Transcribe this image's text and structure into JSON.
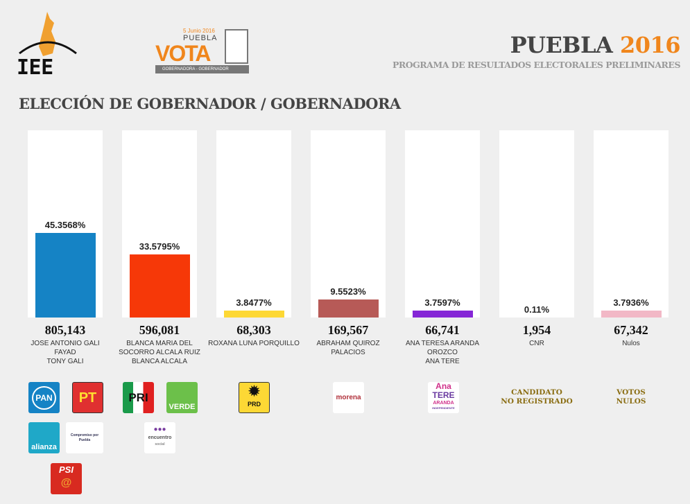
{
  "header": {
    "iee_logo": "IEE",
    "vota_logo": {
      "date": "5 Junio 2016",
      "city": "PUEBLA",
      "word": "VOTA",
      "caption": "GOBERNADORA - GOBERNADOR"
    },
    "title_main": "PUEBLA",
    "title_year": "2016",
    "subtitle": "PROGRAMA DE RESULTADOS ELECTORALES PRELIMINARES"
  },
  "section_title": "ELECCIÓN DE GOBERNADOR / GOBERNADORA",
  "colors": {
    "accent": "#f0861c",
    "pan": "#1583c5",
    "pri": "#f63808",
    "prd": "#fdd835",
    "morena": "#b75a57",
    "independent": "#8526d6",
    "cnr": "#dddddd",
    "nulos": "#f2b8c6"
  },
  "chart_data": {
    "type": "bar",
    "ylim": [
      0,
      100
    ],
    "grid": false,
    "categories": [
      "JOSE ANTONIO GALI FAYAD TONY GALI",
      "BLANCA MARIA DEL SOCORRO ALCALA RUIZ BLANCA ALCALA",
      "ROXANA LUNA PORQUILLO",
      "ABRAHAM QUIROZ PALACIOS",
      "ANA TERESA ARANDA OROZCO ANA TERE",
      "CNR",
      "Nulos"
    ],
    "values": [
      45.3568,
      33.5795,
      3.8477,
      9.5523,
      3.7597,
      0.11,
      3.7936
    ],
    "labels": [
      "45.3568%",
      "33.5795%",
      "3.8477%",
      "9.5523%",
      "3.7597%",
      "0.11%",
      "3.7936%"
    ],
    "votes": [
      "805,143",
      "596,081",
      "68,303",
      "169,567",
      "66,741",
      "1,954",
      "67,342"
    ],
    "candidate_lines": [
      [
        "JOSE ANTONIO GALI",
        "FAYAD",
        "TONY GALI"
      ],
      [
        "BLANCA MARIA DEL",
        "SOCORRO ALCALA RUIZ",
        "BLANCA ALCALA"
      ],
      [
        "ROXANA LUNA PORQUILLO"
      ],
      [
        "ABRAHAM QUIROZ",
        "PALACIOS"
      ],
      [
        "ANA TERESA ARANDA",
        "OROZCO",
        "ANA TERE"
      ],
      [
        "CNR"
      ],
      [
        "Nulos"
      ]
    ],
    "colors": [
      "#1583c5",
      "#f63808",
      "#fdd835",
      "#b75a57",
      "#8526d6",
      "#dddddd",
      "#f2b8c6"
    ]
  },
  "parties": {
    "pan": "PAN",
    "pt": "PT",
    "pri": "PRI",
    "verde": "VERDE",
    "prd": "PRD",
    "morena": "morena",
    "ana_tere": [
      "Ana",
      "TERE",
      "ARANDA",
      "INDEPENDIENTE"
    ],
    "alianza": "alianza",
    "compromiso": "Compromiso por Puebla",
    "encuentro": [
      "encuentro",
      "social"
    ],
    "psi": "PSI"
  },
  "cnr_label": [
    "CANDIDATO",
    "NO REGISTRADO"
  ],
  "nulos_label": [
    "VOTOS",
    "NULOS"
  ]
}
